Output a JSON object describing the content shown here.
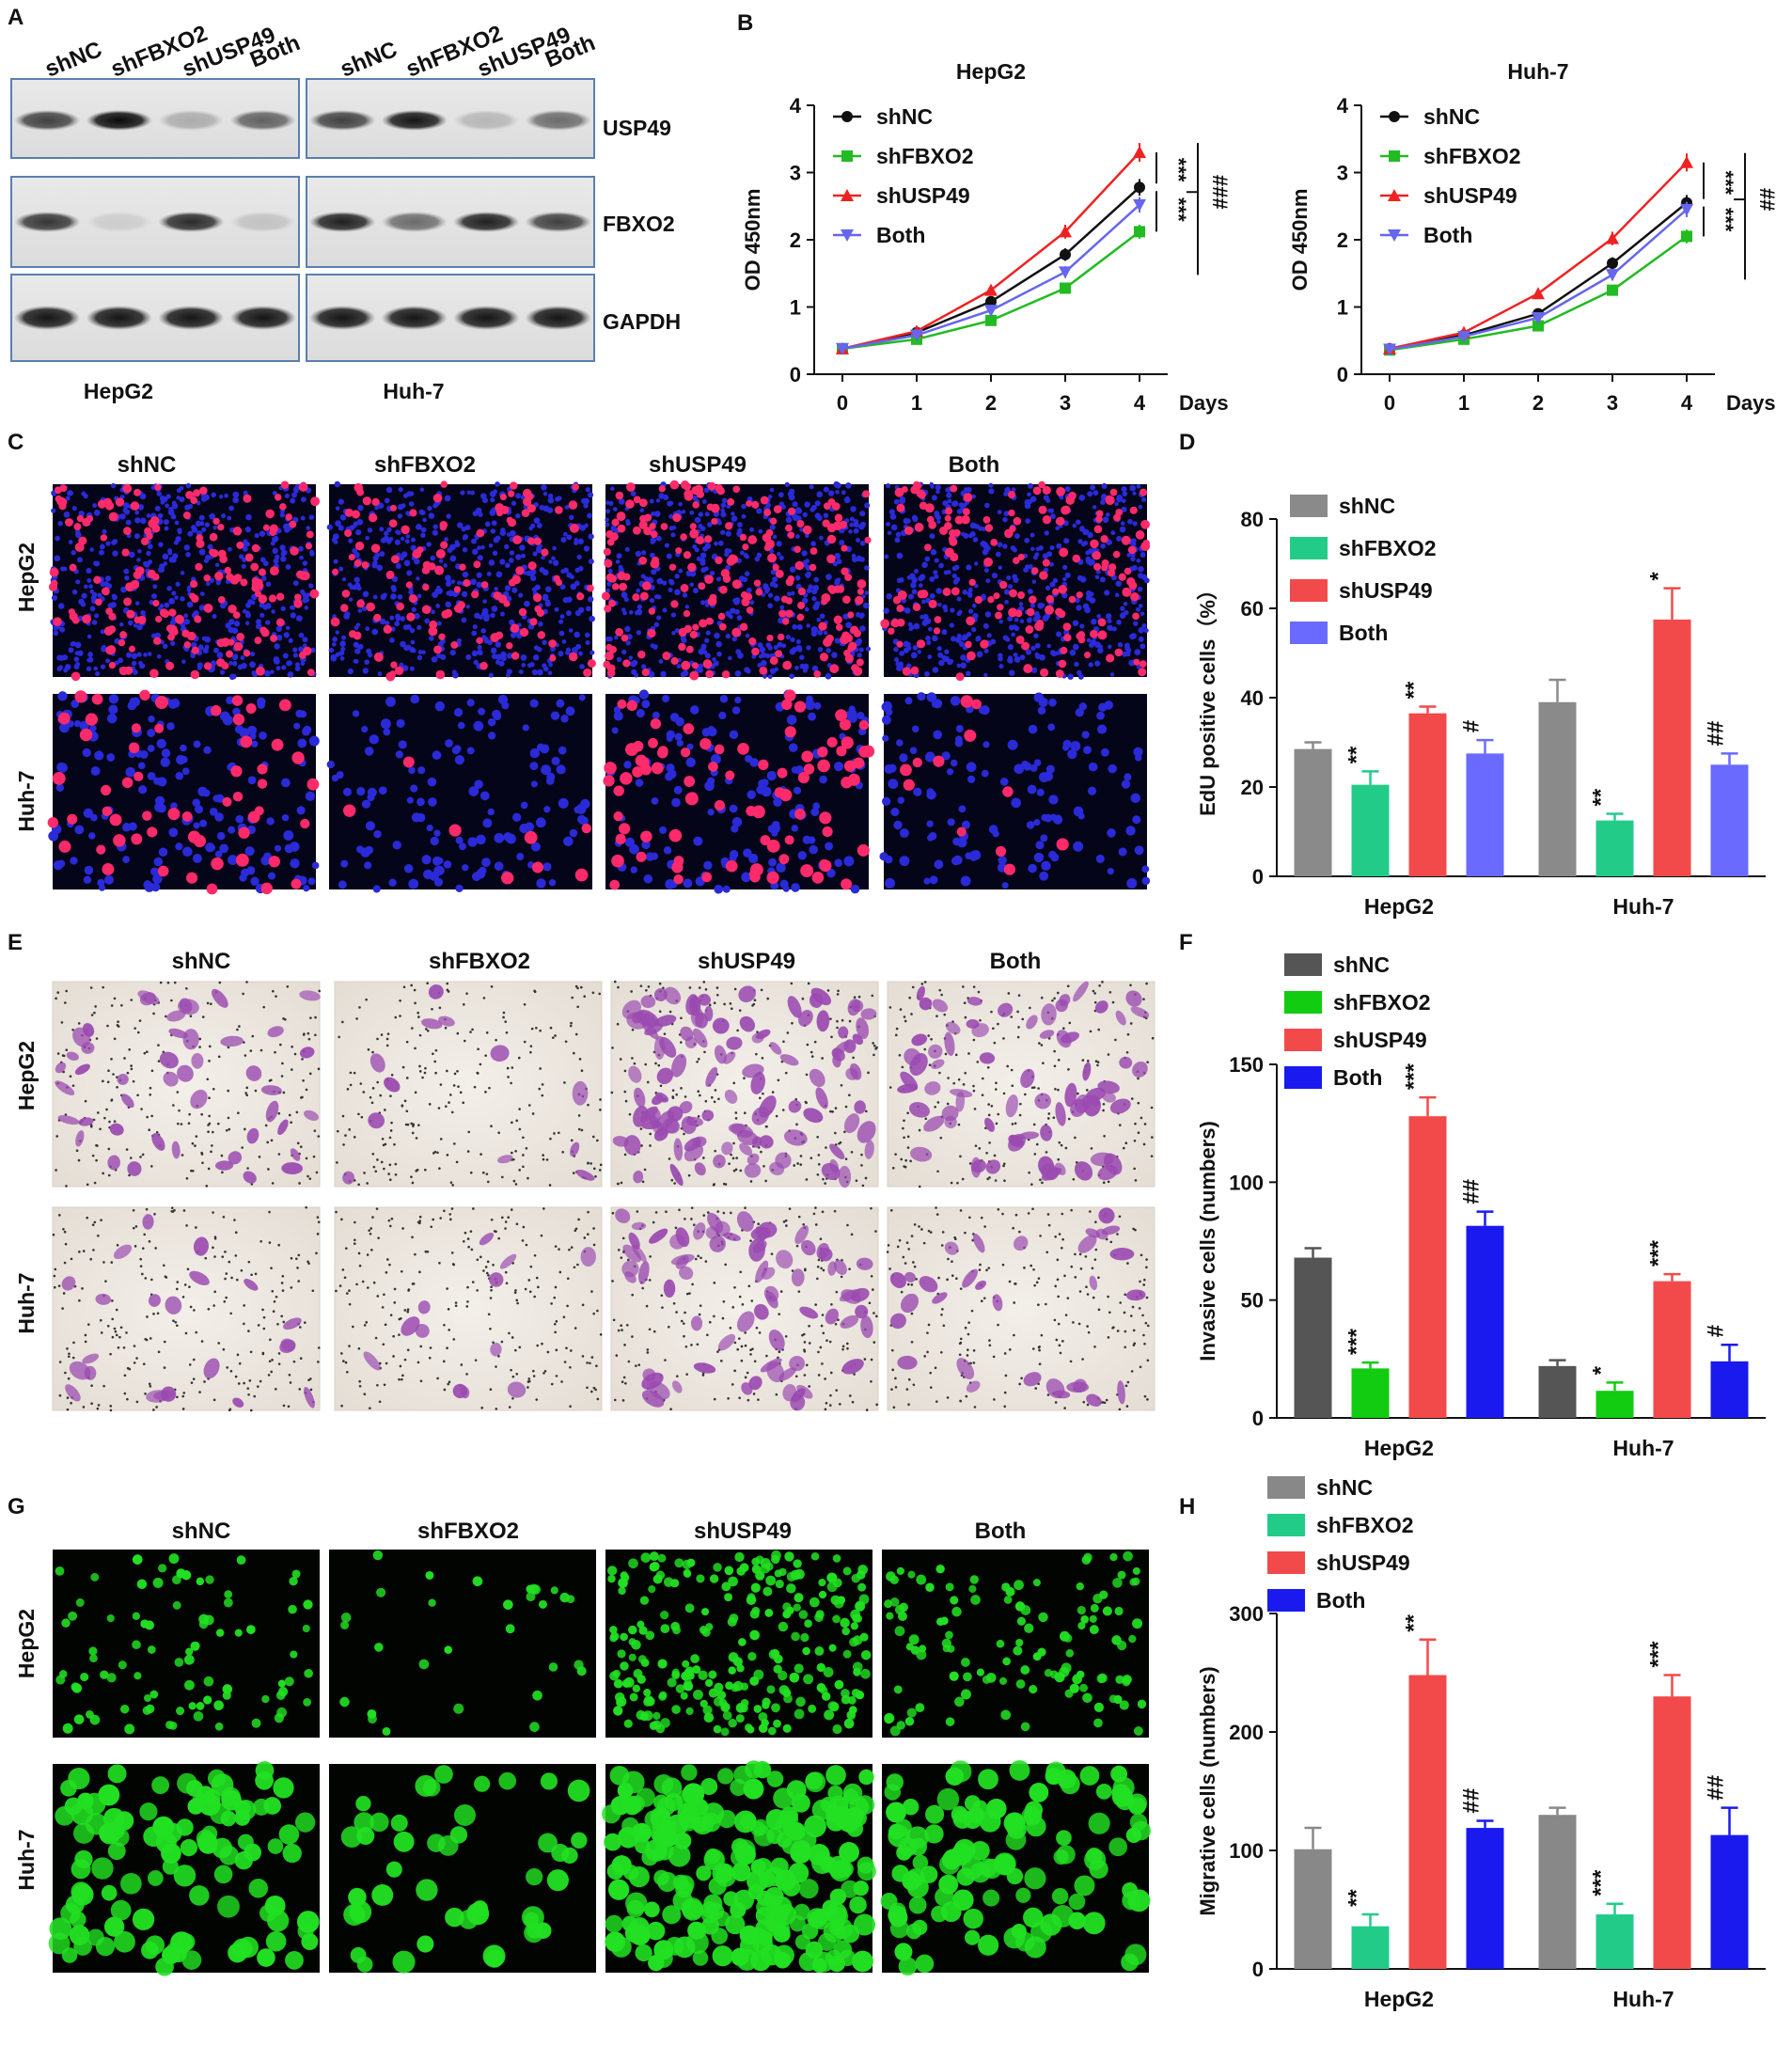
{
  "panel_letters": [
    "A",
    "B",
    "C",
    "D",
    "E",
    "F",
    "G",
    "H"
  ],
  "conditions": [
    "shNC",
    "shFBXO2",
    "shUSP49",
    "Both"
  ],
  "cell_lines": [
    "HepG2",
    "Huh-7"
  ],
  "colors": {
    "line": [
      "#111111",
      "#22bb22",
      "#ee2222",
      "#6666ee"
    ],
    "edu": [
      "#8a8a8a",
      "#22cc88",
      "#f24a4a",
      "#6a6aff"
    ],
    "invasion": [
      "#555555",
      "#11cc11",
      "#f24a4a",
      "#1a1aee"
    ],
    "migration": [
      "#888888",
      "#22cc88",
      "#f24a4a",
      "#1a1aee"
    ],
    "edu_stain_blue": "#2a2ad8",
    "edu_stain_red": "#ff2a6a",
    "crystal_violet": "#9a4ab0",
    "calcein_green": "#22e022"
  },
  "panel_A": {
    "proteins": [
      "USP49",
      "FBXO2",
      "GAPDH"
    ],
    "cell_lines": [
      "HepG2",
      "Huh-7"
    ],
    "lane_labels": [
      "shNC",
      "shFBXO2",
      "shUSP49",
      "Both"
    ]
  },
  "panel_C": {
    "row_labels": [
      "HepG2",
      "Huh-7"
    ]
  },
  "panel_E": {
    "row_labels": [
      "HepG2",
      "Huh-7"
    ]
  },
  "panel_G": {
    "row_labels": [
      "HepG2",
      "Huh-7"
    ]
  },
  "chart_data": [
    {
      "panel": "B",
      "type": "line",
      "title": "HepG2",
      "ylabel": "OD 450nm",
      "xlabel": "Days",
      "x": [
        0,
        1,
        2,
        3,
        4
      ],
      "ylim": [
        0,
        4
      ],
      "yticks": [
        "0",
        "1",
        "2",
        "3",
        "4"
      ],
      "legend": "top-left",
      "series": [
        {
          "name": "shNC",
          "values": [
            0.38,
            0.62,
            1.08,
            1.78,
            2.78
          ]
        },
        {
          "name": "shFBXO2",
          "values": [
            0.38,
            0.52,
            0.8,
            1.28,
            2.12
          ]
        },
        {
          "name": "shUSP49",
          "values": [
            0.38,
            0.64,
            1.25,
            2.12,
            3.3
          ]
        },
        {
          "name": "Both",
          "values": [
            0.38,
            0.58,
            0.95,
            1.52,
            2.52
          ]
        }
      ],
      "annotations": [
        "***",
        "***",
        "###"
      ]
    },
    {
      "panel": "B",
      "type": "line",
      "title": "Huh-7",
      "ylabel": "OD 450nm",
      "xlabel": "Days",
      "x": [
        0,
        1,
        2,
        3,
        4
      ],
      "ylim": [
        0,
        4
      ],
      "yticks": [
        "0",
        "1",
        "2",
        "3",
        "4"
      ],
      "legend": "top-left",
      "series": [
        {
          "name": "shNC",
          "values": [
            0.38,
            0.58,
            0.9,
            1.65,
            2.55
          ]
        },
        {
          "name": "shFBXO2",
          "values": [
            0.36,
            0.52,
            0.72,
            1.25,
            2.05
          ]
        },
        {
          "name": "shUSP49",
          "values": [
            0.38,
            0.62,
            1.2,
            2.02,
            3.15
          ]
        },
        {
          "name": "Both",
          "values": [
            0.37,
            0.56,
            0.84,
            1.48,
            2.45
          ]
        }
      ],
      "annotations": [
        "***",
        "***",
        "##"
      ]
    },
    {
      "panel": "D",
      "type": "bar",
      "categories": [
        "HepG2",
        "Huh-7"
      ],
      "ylabel": "EdU positive cells（%）",
      "ylim": [
        0,
        80
      ],
      "yticks": [
        "0",
        "20",
        "40",
        "60",
        "80"
      ],
      "legend": "top-left",
      "series": [
        {
          "name": "shNC",
          "values": [
            28.5,
            39
          ],
          "errors": [
            1.5,
            5
          ],
          "sig": [
            "",
            ""
          ]
        },
        {
          "name": "shFBXO2",
          "values": [
            20.5,
            12.5
          ],
          "errors": [
            3,
            1.5
          ],
          "sig": [
            "**",
            "**"
          ]
        },
        {
          "name": "shUSP49",
          "values": [
            36.5,
            57.5
          ],
          "errors": [
            1.5,
            7
          ],
          "sig": [
            "**",
            "*"
          ]
        },
        {
          "name": "Both",
          "values": [
            27.5,
            25
          ],
          "errors": [
            3,
            2.5
          ],
          "sig": [
            "#",
            "##"
          ]
        }
      ]
    },
    {
      "panel": "F",
      "type": "bar",
      "categories": [
        "HepG2",
        "Huh-7"
      ],
      "ylabel": "Invasive cells (numbers)",
      "ylim": [
        0,
        150
      ],
      "yticks": [
        "0",
        "50",
        "100",
        "150"
      ],
      "legend": "top-left",
      "series": [
        {
          "name": "shNC",
          "values": [
            68,
            22
          ],
          "errors": [
            4,
            2.5
          ],
          "sig": [
            "",
            ""
          ]
        },
        {
          "name": "shFBXO2",
          "values": [
            21,
            11.5
          ],
          "errors": [
            2.5,
            3.5
          ],
          "sig": [
            "***",
            "*"
          ]
        },
        {
          "name": "shUSP49",
          "values": [
            128,
            58
          ],
          "errors": [
            8,
            3
          ],
          "sig": [
            "***",
            "***"
          ]
        },
        {
          "name": "Both",
          "values": [
            81.5,
            24
          ],
          "errors": [
            6,
            7
          ],
          "sig": [
            "##",
            "#"
          ]
        }
      ]
    },
    {
      "panel": "H",
      "type": "bar",
      "categories": [
        "HepG2",
        "Huh-7"
      ],
      "ylabel": "Migrative cells (numbers)",
      "ylim": [
        0,
        300
      ],
      "yticks": [
        "0",
        "100",
        "200",
        "300"
      ],
      "legend": "top-left",
      "series": [
        {
          "name": "shNC",
          "values": [
            101,
            130
          ],
          "errors": [
            18,
            6
          ],
          "sig": [
            "",
            ""
          ]
        },
        {
          "name": "shFBXO2",
          "values": [
            36,
            46
          ],
          "errors": [
            10,
            9
          ],
          "sig": [
            "**",
            "***"
          ]
        },
        {
          "name": "shUSP49",
          "values": [
            248,
            230
          ],
          "errors": [
            30,
            18
          ],
          "sig": [
            "**",
            "***"
          ]
        },
        {
          "name": "Both",
          "values": [
            119,
            113
          ],
          "errors": [
            6,
            23
          ],
          "sig": [
            "##",
            "##"
          ]
        }
      ]
    }
  ]
}
